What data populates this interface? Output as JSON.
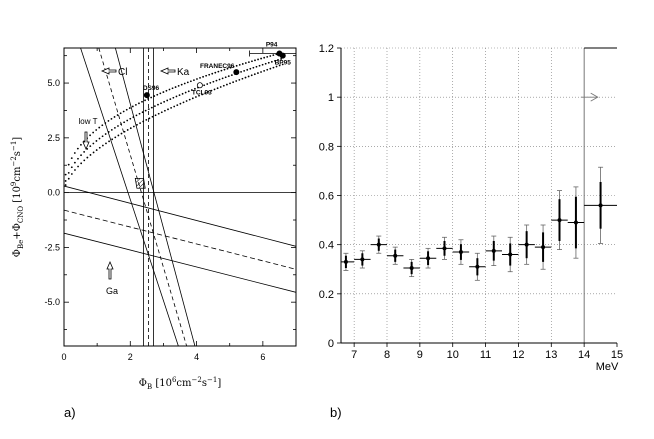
{
  "chart_data": [
    {
      "panel": "a)",
      "type": "scatter",
      "xlabel": "Φ_B [10^6 cm^-2 s^-1]",
      "ylabel": "Φ_Be + Φ_CNO [10^9 cm^-2 s^-1]",
      "xlim": [
        0,
        7
      ],
      "ylim": [
        -7,
        6.6
      ],
      "x_ticks": [
        "0",
        "2",
        "4",
        "6"
      ],
      "y_ticks": [
        "-5.0",
        "-2.5",
        "0.0",
        "2.5",
        "5.0"
      ],
      "points": [
        {
          "label": "P94",
          "x": 6.5,
          "y": 6.35,
          "filled": true
        },
        {
          "label": "BP95",
          "x": 6.6,
          "y": 6.25,
          "filled": true
        },
        {
          "label": "FRANEC96",
          "x": 5.2,
          "y": 5.5,
          "filled": true
        },
        {
          "label": "DS96",
          "x": 2.5,
          "y": 4.45,
          "filled": true
        },
        {
          "label": "TCL93",
          "x": 4.1,
          "y": 4.9,
          "filled": false
        }
      ],
      "annotations": [
        {
          "text": "Cl",
          "arrow": "left"
        },
        {
          "text": "Ka",
          "arrow": "left"
        },
        {
          "text": "low T",
          "arrow": "down"
        },
        {
          "text": "Ga",
          "arrow": "up"
        }
      ]
    },
    {
      "panel": "b)",
      "type": "scatter",
      "xlabel": "MeV",
      "ylabel": "",
      "xlim": [
        6.6,
        15
      ],
      "ylim": [
        0,
        1.2
      ],
      "x_ticks": [
        "7",
        "8",
        "9",
        "10",
        "11",
        "12",
        "13",
        "14",
        "15"
      ],
      "y_ticks": [
        "0",
        "0.2",
        "0.4",
        "0.6",
        "0.8",
        "1",
        "1.2"
      ],
      "grid": true,
      "series": [
        {
          "x": [
            6.75,
            7.25,
            7.75,
            8.25,
            8.75,
            9.25,
            9.75,
            10.25,
            10.75,
            11.25,
            11.75,
            12.25,
            12.75,
            13.25,
            13.75,
            14.5
          ],
          "xerr": [
            0.25,
            0.25,
            0.25,
            0.25,
            0.25,
            0.25,
            0.25,
            0.25,
            0.25,
            0.25,
            0.25,
            0.25,
            0.25,
            0.25,
            0.25,
            0.5
          ],
          "y": [
            0.33,
            0.34,
            0.4,
            0.355,
            0.305,
            0.345,
            0.385,
            0.37,
            0.31,
            0.375,
            0.36,
            0.4,
            0.39,
            0.5,
            0.49,
            0.56
          ],
          "err_stat": [
            0.025,
            0.025,
            0.025,
            0.025,
            0.025,
            0.028,
            0.03,
            0.032,
            0.035,
            0.04,
            0.045,
            0.055,
            0.06,
            0.085,
            0.105,
            0.095
          ],
          "err_tot": [
            0.035,
            0.035,
            0.035,
            0.035,
            0.035,
            0.04,
            0.045,
            0.05,
            0.055,
            0.06,
            0.07,
            0.08,
            0.09,
            0.12,
            0.145,
            0.155
          ]
        }
      ],
      "annotations": [
        {
          "text": "",
          "arrow": "right",
          "y": 1.0
        }
      ]
    }
  ],
  "captions": {
    "a": "a)",
    "b": "b)"
  }
}
